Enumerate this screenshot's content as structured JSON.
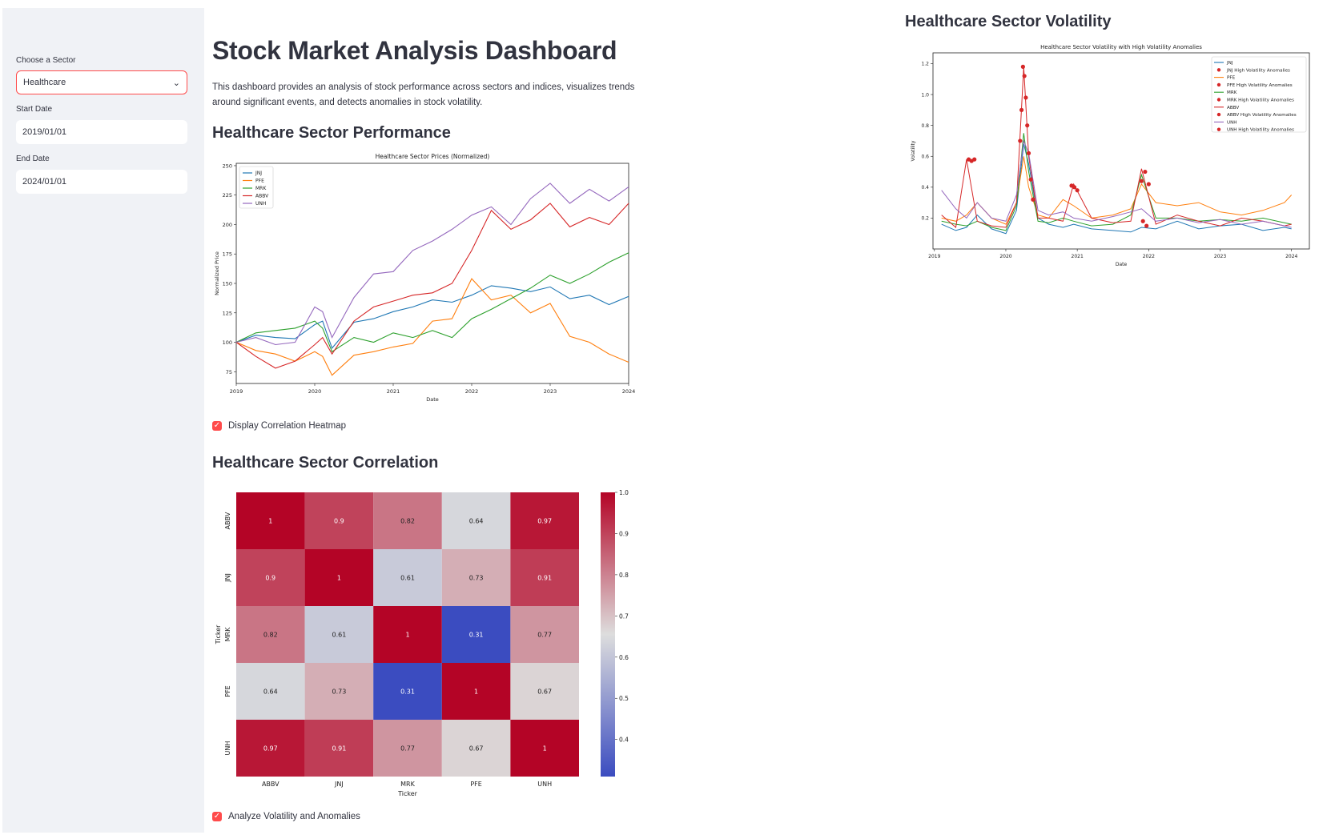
{
  "sidebar": {
    "sector_label": "Choose a Sector",
    "sector_value": "Healthcare",
    "start_label": "Start Date",
    "start_value": "2019/01/01",
    "end_label": "End Date",
    "end_value": "2024/01/01"
  },
  "main": {
    "title": "Stock Market Analysis Dashboard",
    "description": "This dashboard provides an analysis of stock performance across sectors and indices, visualizes trends around significant events, and detects anomalies in stock volatility.",
    "performance_heading": "Healthcare Sector Performance",
    "heatmap_checkbox": "Display Correlation Heatmap",
    "correlation_heading": "Healthcare Sector Correlation",
    "volatility_checkbox": "Analyze Volatility and Anomalies",
    "volatility_heading": "Healthcare Sector Volatility"
  },
  "colors": {
    "accent": "#ff4b4b",
    "JNJ": "#1f77b4",
    "PFE": "#ff7f0e",
    "MRK": "#2ca02c",
    "ABBV": "#d62728",
    "UNH": "#9467bd",
    "anomaly": "#d62728"
  },
  "chart_data": [
    {
      "type": "line",
      "title": "Healthcare Sector Prices (Normalized)",
      "xlabel": "Date",
      "ylabel": "Normalized Price",
      "xlim": [
        2019.0,
        2024.0
      ],
      "ylim": [
        65,
        252
      ],
      "xticks": [
        "2019",
        "2020",
        "2021",
        "2022",
        "2023",
        "2024"
      ],
      "yticks": [
        75,
        100,
        125,
        150,
        175,
        200,
        225,
        250
      ],
      "legend": "top-left",
      "x": [
        2019.0,
        2019.25,
        2019.5,
        2019.75,
        2020.0,
        2020.1,
        2020.22,
        2020.5,
        2020.75,
        2021.0,
        2021.25,
        2021.5,
        2021.75,
        2022.0,
        2022.25,
        2022.5,
        2022.75,
        2023.0,
        2023.25,
        2023.5,
        2023.75,
        2024.0
      ],
      "series": [
        {
          "name": "JNJ",
          "values": [
            100,
            106,
            104,
            103,
            115,
            118,
            95,
            117,
            120,
            126,
            130,
            136,
            134,
            140,
            148,
            146,
            143,
            147,
            137,
            140,
            132,
            139
          ]
        },
        {
          "name": "PFE",
          "values": [
            100,
            93,
            90,
            84,
            92,
            88,
            72,
            89,
            92,
            96,
            99,
            118,
            120,
            154,
            136,
            140,
            125,
            133,
            105,
            100,
            90,
            83
          ]
        },
        {
          "name": "MRK",
          "values": [
            100,
            108,
            110,
            112,
            118,
            112,
            92,
            104,
            100,
            108,
            104,
            110,
            104,
            120,
            128,
            137,
            146,
            157,
            150,
            158,
            168,
            176
          ]
        },
        {
          "name": "ABBV",
          "values": [
            100,
            88,
            78,
            84,
            98,
            104,
            90,
            118,
            130,
            135,
            140,
            142,
            150,
            178,
            212,
            196,
            204,
            218,
            198,
            206,
            200,
            218
          ]
        },
        {
          "name": "UNH",
          "values": [
            100,
            104,
            98,
            100,
            130,
            126,
            104,
            138,
            158,
            160,
            178,
            186,
            196,
            208,
            215,
            200,
            222,
            235,
            218,
            230,
            220,
            232
          ]
        }
      ]
    },
    {
      "type": "heatmap",
      "xlabel": "Ticker",
      "ylabel": "Ticker",
      "categories": [
        "ABBV",
        "JNJ",
        "MRK",
        "PFE",
        "UNH"
      ],
      "values": [
        [
          1,
          0.9,
          0.82,
          0.64,
          0.97
        ],
        [
          0.9,
          1,
          0.61,
          0.73,
          0.91
        ],
        [
          0.82,
          0.61,
          1,
          0.31,
          0.77
        ],
        [
          0.64,
          0.73,
          0.31,
          1,
          0.67
        ],
        [
          0.97,
          0.91,
          0.77,
          0.67,
          1
        ]
      ],
      "colorbar_ticks": [
        "1.0",
        "0.9",
        "0.8",
        "0.7",
        "0.6",
        "0.5",
        "0.4"
      ],
      "vmin": 0.31,
      "vmax": 1.0
    },
    {
      "type": "line",
      "title": "Healthcare Sector Volatility with High Volatility Anomalies",
      "xlabel": "Date",
      "ylabel": "Volatility",
      "xlim": [
        2018.98,
        2024.25
      ],
      "ylim": [
        0.0,
        1.27
      ],
      "xticks": [
        "2019",
        "2020",
        "2021",
        "2022",
        "2023",
        "2024"
      ],
      "yticks": [
        "0.2",
        "0.4",
        "0.6",
        "0.8",
        "1.0",
        "1.2"
      ],
      "legend": "top-right",
      "x": [
        2019.1,
        2019.3,
        2019.45,
        2019.6,
        2019.8,
        2020.0,
        2020.15,
        2020.25,
        2020.32,
        2020.45,
        2020.6,
        2020.8,
        2020.95,
        2021.2,
        2021.5,
        2021.75,
        2021.9,
        2022.1,
        2022.4,
        2022.7,
        2023.0,
        2023.3,
        2023.6,
        2023.9,
        2024.0
      ],
      "series": [
        {
          "name": "JNJ",
          "values": [
            0.16,
            0.12,
            0.14,
            0.22,
            0.13,
            0.1,
            0.25,
            0.68,
            0.55,
            0.2,
            0.16,
            0.14,
            0.16,
            0.13,
            0.12,
            0.11,
            0.14,
            0.13,
            0.18,
            0.13,
            0.15,
            0.16,
            0.12,
            0.14,
            0.13
          ]
        },
        {
          "name": "PFE",
          "values": [
            0.2,
            0.18,
            0.22,
            0.3,
            0.2,
            0.16,
            0.3,
            0.6,
            0.4,
            0.22,
            0.2,
            0.32,
            0.28,
            0.2,
            0.22,
            0.26,
            0.42,
            0.3,
            0.28,
            0.3,
            0.24,
            0.22,
            0.25,
            0.3,
            0.35
          ]
        },
        {
          "name": "MRK",
          "values": [
            0.18,
            0.16,
            0.15,
            0.18,
            0.14,
            0.12,
            0.28,
            0.75,
            0.5,
            0.18,
            0.17,
            0.2,
            0.18,
            0.15,
            0.16,
            0.22,
            0.48,
            0.2,
            0.2,
            0.18,
            0.19,
            0.18,
            0.2,
            0.17,
            0.16
          ]
        },
        {
          "name": "ABBV",
          "values": [
            0.22,
            0.14,
            0.58,
            0.18,
            0.15,
            0.14,
            0.3,
            1.18,
            0.6,
            0.2,
            0.2,
            0.18,
            0.42,
            0.2,
            0.17,
            0.18,
            0.52,
            0.16,
            0.22,
            0.18,
            0.15,
            0.2,
            0.18,
            0.15,
            0.16
          ]
        },
        {
          "name": "UNH",
          "values": [
            0.38,
            0.26,
            0.2,
            0.3,
            0.2,
            0.18,
            0.35,
            0.7,
            0.62,
            0.25,
            0.22,
            0.24,
            0.2,
            0.18,
            0.21,
            0.24,
            0.26,
            0.18,
            0.2,
            0.17,
            0.19,
            0.16,
            0.18,
            0.15,
            0.14
          ]
        }
      ],
      "legend_entries": [
        "JNJ",
        "JNJ High Volatility Anomalies",
        "PFE",
        "PFE High Volatility Anomalies",
        "MRK",
        "MRK High Volatility Anomalies",
        "ABBV",
        "ABBV High Volatility Anomalies",
        "UNH",
        "UNH High Volatility Anomalies"
      ],
      "anomalies": [
        {
          "x": 2019.48,
          "y": 0.58
        },
        {
          "x": 2019.52,
          "y": 0.57
        },
        {
          "x": 2019.56,
          "y": 0.58
        },
        {
          "x": 2020.2,
          "y": 0.7
        },
        {
          "x": 2020.22,
          "y": 0.9
        },
        {
          "x": 2020.24,
          "y": 1.18
        },
        {
          "x": 2020.26,
          "y": 1.12
        },
        {
          "x": 2020.28,
          "y": 0.98
        },
        {
          "x": 2020.3,
          "y": 0.8
        },
        {
          "x": 2020.32,
          "y": 0.62
        },
        {
          "x": 2020.35,
          "y": 0.45
        },
        {
          "x": 2020.38,
          "y": 0.32
        },
        {
          "x": 2020.92,
          "y": 0.41
        },
        {
          "x": 2020.96,
          "y": 0.4
        },
        {
          "x": 2021.0,
          "y": 0.38
        },
        {
          "x": 2021.9,
          "y": 0.44
        },
        {
          "x": 2021.95,
          "y": 0.5
        },
        {
          "x": 2022.0,
          "y": 0.42
        },
        {
          "x": 2021.92,
          "y": 0.18
        },
        {
          "x": 2021.97,
          "y": 0.15
        }
      ]
    }
  ]
}
